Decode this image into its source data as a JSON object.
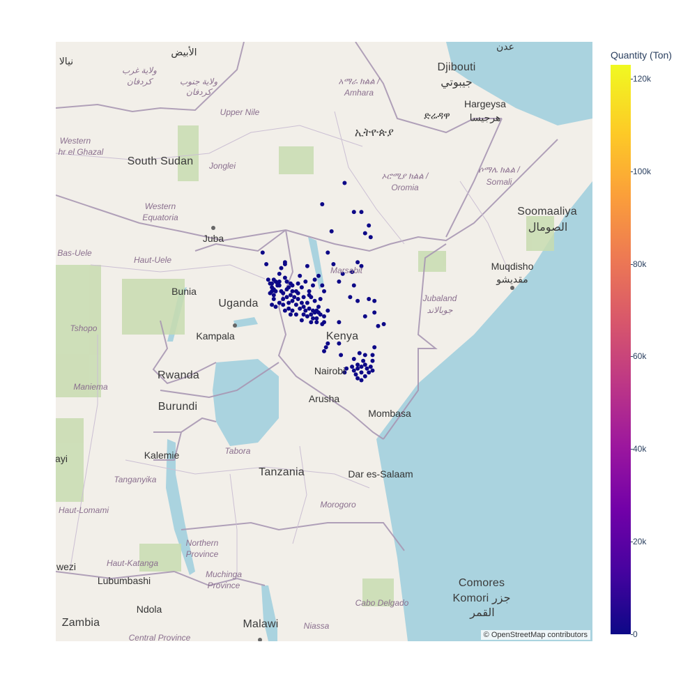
{
  "map": {
    "attribution": "© OpenStreetMap contributors",
    "colors": {
      "land": "#f2efe9",
      "water": "#aad3df",
      "parks": "#c8dcb0",
      "border": "#a897b3",
      "marker": "#0d0887"
    },
    "country_labels": [
      "South Sudan",
      "Uganda",
      "Kenya",
      "Rwanda",
      "Burundi",
      "Tanzania",
      "Zambia",
      "Malawi",
      "Soomaaliya",
      "الصومال",
      "Djibouti",
      "جيبوتي",
      "ኢትዮጵያ",
      "Comores",
      "Komori جزر",
      "القمر"
    ],
    "region_labels": [
      "ولاية غرب",
      "كردفان",
      "ولاية جنوب",
      "كردفان",
      "Upper Nile",
      "Western",
      "hr el Ghazal",
      "Jonglei",
      "Western",
      "Equatoria",
      "Bas-Uele",
      "Haut-Uele",
      "Tshopo",
      "Maniema",
      "Tanganyika",
      "Haut-Lomami",
      "Haut-Katanga",
      "Tabora",
      "Morogoro",
      "Northern",
      "Province",
      "Muchinga",
      "Province",
      "Central Province",
      "Niassa",
      "Cabo Delgado",
      "Marsabit",
      "Jubaland",
      "جوبالاند",
      "አማራ ክልል /",
      "Amhara",
      "ኦሮሚያ ክልል /",
      "Oromia",
      "ሶማሌ ክልል /",
      "Somali"
    ],
    "city_labels": [
      "الأبيض",
      "نيالا",
      "عدن",
      "Hargeysa",
      "هرجيسا",
      "ድሬዳዋ",
      "Juba",
      "Bunia",
      "Kampala",
      "Nairobi",
      "Arusha",
      "Mombasa",
      "Dar es-Salaam",
      "Kalemie",
      "Lubumbashi",
      "Ndola",
      "Muqdisho",
      "مقديشو",
      "wezi",
      "ayi"
    ]
  },
  "chart_data": {
    "type": "scatter_mapbox",
    "title": "",
    "color_variable": "Quantity (Ton)",
    "colorscale": "Plasma",
    "color_range": [
      0,
      123000
    ],
    "colorbar_ticks": [
      {
        "value": 0,
        "label": "0"
      },
      {
        "value": 20000,
        "label": "20k"
      },
      {
        "value": 40000,
        "label": "40k"
      },
      {
        "value": 60000,
        "label": "60k"
      },
      {
        "value": 80000,
        "label": "80k"
      },
      {
        "value": 100000,
        "label": "100k"
      },
      {
        "value": 120000,
        "label": "120k"
      }
    ],
    "points_lon_lat": [
      [
        33.7,
        2.0
      ],
      [
        33.9,
        1.4
      ],
      [
        34.9,
        1.5
      ],
      [
        34.9,
        1.4
      ],
      [
        34.7,
        1.2
      ],
      [
        34.6,
        0.9
      ],
      [
        34.3,
        0.6
      ],
      [
        34.6,
        0.5
      ],
      [
        34.5,
        0.3
      ],
      [
        34.2,
        0.2
      ],
      [
        34.3,
        0.1
      ],
      [
        34.2,
        0.0
      ],
      [
        34.1,
        -0.1
      ],
      [
        34.3,
        -0.2
      ],
      [
        34.2,
        0.4
      ],
      [
        34.4,
        0.5
      ],
      [
        34.0,
        0.6
      ],
      [
        34.1,
        0.4
      ],
      [
        34.5,
        0.4
      ],
      [
        34.4,
        0.0
      ],
      [
        34.6,
        0.3
      ],
      [
        34.7,
        0.0
      ],
      [
        34.8,
        -0.1
      ],
      [
        35.0,
        0.1
      ],
      [
        35.1,
        0.2
      ],
      [
        35.3,
        0.3
      ],
      [
        35.2,
        0.4
      ],
      [
        35.0,
        0.5
      ],
      [
        34.9,
        0.7
      ],
      [
        34.8,
        -0.4
      ],
      [
        35.0,
        -0.3
      ],
      [
        35.2,
        -0.2
      ],
      [
        35.3,
        0.0
      ],
      [
        35.5,
        0.0
      ],
      [
        35.6,
        -0.1
      ],
      [
        35.4,
        -0.3
      ],
      [
        35.3,
        -0.5
      ],
      [
        35.1,
        -0.6
      ],
      [
        34.8,
        -0.7
      ],
      [
        34.6,
        -0.6
      ],
      [
        34.4,
        -0.8
      ],
      [
        34.2,
        -0.7
      ],
      [
        34.3,
        -0.4
      ],
      [
        35.6,
        -0.4
      ],
      [
        35.8,
        -0.6
      ],
      [
        35.9,
        -0.8
      ],
      [
        36.0,
        -1.0
      ],
      [
        36.2,
        -0.9
      ],
      [
        36.3,
        -1.2
      ],
      [
        36.1,
        -1.3
      ],
      [
        35.9,
        -1.2
      ],
      [
        36.4,
        -1.0
      ],
      [
        36.5,
        -0.5
      ],
      [
        36.3,
        -0.3
      ],
      [
        36.2,
        0.0
      ],
      [
        36.4,
        0.3
      ],
      [
        36.5,
        0.6
      ],
      [
        36.7,
        0.8
      ],
      [
        36.9,
        0.3
      ],
      [
        37.0,
        0.0
      ],
      [
        36.8,
        -0.4
      ],
      [
        36.7,
        -0.8
      ],
      [
        36.6,
        -1.0
      ],
      [
        36.8,
        -1.2
      ],
      [
        37.0,
        -1.3
      ],
      [
        37.2,
        -1.0
      ],
      [
        37.0,
        -1.6
      ],
      [
        36.6,
        -1.6
      ],
      [
        36.9,
        -1.7
      ],
      [
        36.3,
        -1.6
      ],
      [
        35.8,
        -1.5
      ],
      [
        35.5,
        -1.2
      ],
      [
        35.7,
        -0.9
      ],
      [
        35.3,
        -1.0
      ],
      [
        35.1,
        -0.9
      ],
      [
        36.1,
        -0.6
      ],
      [
        35.9,
        -0.3
      ],
      [
        36.2,
        -0.2
      ],
      [
        35.8,
        0.2
      ],
      [
        35.6,
        0.4
      ],
      [
        36.0,
        0.5
      ],
      [
        35.7,
        0.8
      ],
      [
        36.1,
        1.3
      ],
      [
        37.2,
        2.0
      ],
      [
        37.5,
        1.4
      ],
      [
        37.8,
        0.5
      ],
      [
        38.0,
        0.9
      ],
      [
        38.5,
        1.0
      ],
      [
        38.6,
        0.3
      ],
      [
        38.8,
        -0.5
      ],
      [
        39.4,
        -0.4
      ],
      [
        39.7,
        -1.1
      ],
      [
        39.2,
        -1.3
      ],
      [
        38.4,
        -0.3
      ],
      [
        37.8,
        -1.6
      ],
      [
        37.2,
        -2.7
      ],
      [
        37.9,
        -3.3
      ],
      [
        37.8,
        -2.7
      ],
      [
        38.9,
        -3.2
      ],
      [
        39.2,
        -3.3
      ],
      [
        39.1,
        -3.6
      ],
      [
        38.8,
        -3.8
      ],
      [
        38.5,
        -3.9
      ],
      [
        38.6,
        -4.1
      ],
      [
        38.7,
        -4.3
      ],
      [
        38.8,
        -4.0
      ],
      [
        39.0,
        -3.9
      ],
      [
        39.2,
        -3.8
      ],
      [
        39.5,
        -3.9
      ],
      [
        39.6,
        -4.1
      ],
      [
        39.4,
        -4.2
      ],
      [
        39.2,
        -4.4
      ],
      [
        39.0,
        -4.2
      ],
      [
        38.8,
        -4.5
      ],
      [
        39.3,
        -4.0
      ],
      [
        39.6,
        -3.6
      ],
      [
        38.2,
        -4.0
      ],
      [
        39.6,
        -3.3
      ],
      [
        39.7,
        -2.9
      ],
      [
        38.6,
        -3.5
      ],
      [
        38.1,
        -4.2
      ],
      [
        39.0,
        -4.6
      ],
      [
        36.9,
        4.5
      ],
      [
        38.6,
        4.1
      ],
      [
        39.0,
        4.1
      ],
      [
        39.2,
        3.0
      ],
      [
        39.4,
        3.4
      ],
      [
        39.5,
        2.8
      ],
      [
        37.4,
        3.1
      ],
      [
        38.8,
        1.5
      ],
      [
        39.0,
        1.3
      ],
      [
        38.1,
        5.6
      ],
      [
        39.7,
        -0.5
      ],
      [
        39.9,
        -1.8
      ],
      [
        40.2,
        -1.7
      ],
      [
        37.0,
        -3.1
      ],
      [
        37.1,
        -2.9
      ],
      [
        36.6,
        -1.4
      ],
      [
        36.7,
        -1.1
      ],
      [
        36.5,
        -1.1
      ],
      [
        36.4,
        -1.4
      ],
      [
        35.5,
        -0.7
      ],
      [
        35.2,
        -1.2
      ],
      [
        34.9,
        -1.0
      ]
    ]
  },
  "colorbar": {
    "title": "Quantity (Ton)"
  }
}
